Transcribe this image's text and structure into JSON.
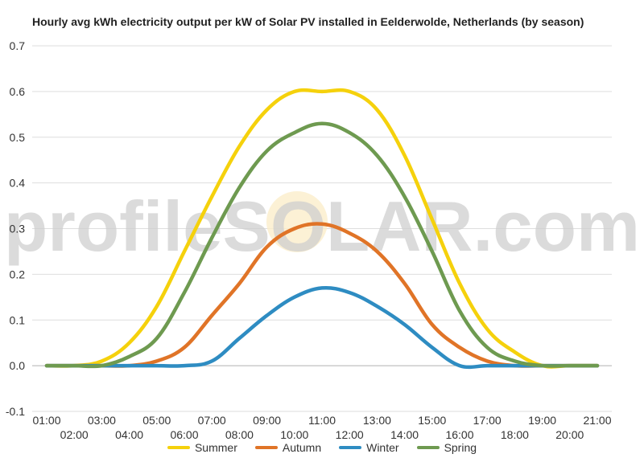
{
  "chart_data": {
    "type": "line",
    "title": "Hourly avg kWh electricity output per kW of Solar PV installed in Eelderwolde, Netherlands (by season)",
    "xlabel": "",
    "ylabel": "",
    "x": [
      "01:00",
      "02:00",
      "03:00",
      "04:00",
      "05:00",
      "06:00",
      "07:00",
      "08:00",
      "09:00",
      "10:00",
      "11:00",
      "12:00",
      "13:00",
      "14:00",
      "15:00",
      "16:00",
      "17:00",
      "18:00",
      "19:00",
      "20:00",
      "21:00"
    ],
    "ylim": [
      -0.1,
      0.7
    ],
    "yticks": [
      "-0.1",
      "0.0",
      "0.1",
      "0.2",
      "0.3",
      "0.4",
      "0.5",
      "0.6",
      "0.7"
    ],
    "grid": true,
    "legend_position": "bottom",
    "watermark": "profileSOLAR.com",
    "series": [
      {
        "name": "Summer",
        "color": "#F5D10C",
        "values": [
          0.0,
          0.0,
          0.01,
          0.05,
          0.13,
          0.25,
          0.37,
          0.48,
          0.56,
          0.6,
          0.6,
          0.6,
          0.56,
          0.46,
          0.32,
          0.18,
          0.08,
          0.03,
          0.0,
          0.0,
          0.0
        ]
      },
      {
        "name": "Autumn",
        "color": "#E07427",
        "values": [
          0.0,
          0.0,
          0.0,
          0.0,
          0.01,
          0.04,
          0.11,
          0.18,
          0.26,
          0.3,
          0.31,
          0.29,
          0.25,
          0.18,
          0.09,
          0.04,
          0.01,
          0.0,
          0.0,
          0.0,
          0.0
        ]
      },
      {
        "name": "Winter",
        "color": "#2E8CC2",
        "values": [
          0.0,
          0.0,
          0.0,
          0.0,
          0.0,
          0.0,
          0.01,
          0.06,
          0.11,
          0.15,
          0.17,
          0.16,
          0.13,
          0.09,
          0.04,
          0.0,
          0.0,
          0.0,
          0.0,
          0.0,
          0.0
        ]
      },
      {
        "name": "Spring",
        "color": "#6E9A50",
        "values": [
          0.0,
          0.0,
          0.0,
          0.02,
          0.06,
          0.16,
          0.28,
          0.39,
          0.47,
          0.51,
          0.53,
          0.51,
          0.46,
          0.37,
          0.25,
          0.12,
          0.04,
          0.01,
          0.0,
          0.0,
          0.0
        ]
      }
    ]
  }
}
